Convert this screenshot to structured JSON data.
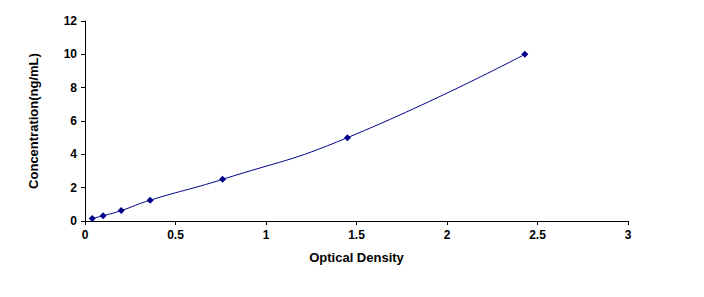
{
  "chart_data": {
    "type": "line",
    "x_label": "Optical Density",
    "y_label": "Concentration(ng/mL)",
    "x": [
      0.04,
      0.1,
      0.2,
      0.36,
      0.76,
      1.45,
      2.43
    ],
    "values": [
      0.156,
      0.312,
      0.625,
      1.25,
      2.5,
      5,
      10
    ],
    "color": "#00008b",
    "marker": "diamond",
    "line_style": "solid",
    "xlim": [
      0,
      3
    ],
    "xticks": [
      0,
      0.5,
      1,
      1.5,
      2,
      2.5,
      3
    ],
    "ylim": [
      0,
      12
    ],
    "yticks": [
      0,
      2,
      4,
      6,
      8,
      10,
      12
    ],
    "grid": false
  }
}
